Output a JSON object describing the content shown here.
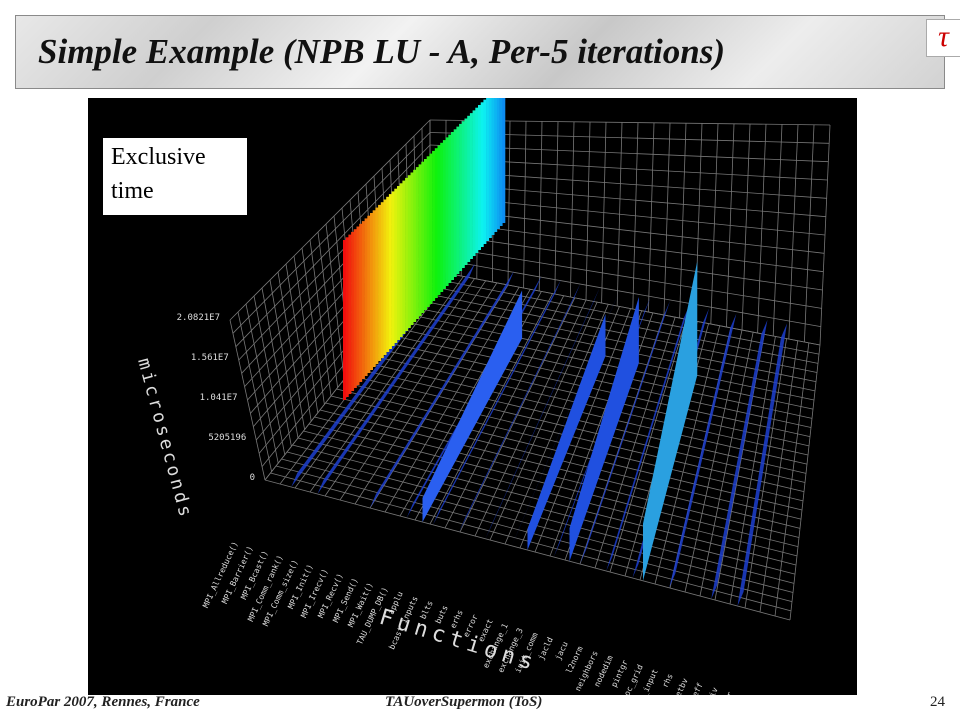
{
  "header": {
    "title": "Simple Example (NPB LU - A, Per-5 iterations)",
    "logo": "τ"
  },
  "figure": {
    "label": "Exclusive time",
    "y_axis_label": "microseconds",
    "x_axis_label": "Functions",
    "y_ticks": [
      "2.0821E7",
      "1.561E7",
      "1.041E7",
      "5205196",
      "0"
    ],
    "functions": [
      "MPI_Allreduce()",
      "MPI_Barrier()",
      "MPI_Bcast()",
      "MPI_Comm_rank()",
      "MPI_Comm_size()",
      "MPI_Init()",
      "MPI_Irecv()",
      "MPI_Recv()",
      "MPI_Send()",
      "MPI_Wait()",
      "TAU_DUMP_DB()",
      "applu",
      "bcast_inputs",
      "blts",
      "buts",
      "erhs",
      "error",
      "exact",
      "exchange_1",
      "exchange_3",
      "init_comm",
      "jacld",
      "jacu",
      "l2norm",
      "neighbors",
      "nodedim",
      "pintgr",
      "proc_grid",
      "read_input",
      "rhs",
      "setbv",
      "setcoeff",
      "setiv",
      "ssor",
      "subdomain"
    ]
  },
  "footer": {
    "left": "EuroPar 2007, Rennes, France",
    "center": "TAUoverSupermon (ToS)",
    "page": "24"
  }
}
